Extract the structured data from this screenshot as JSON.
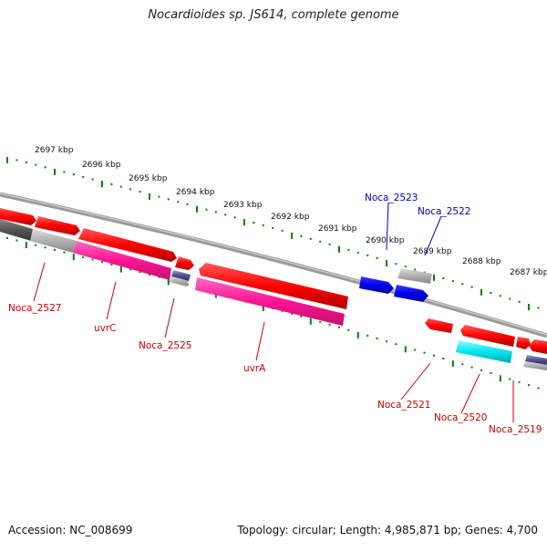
{
  "title": "Nocardioides sp. JS614, complete genome",
  "accession": "Accession: NC_008699",
  "topology": "Topology: circular; Length: 4,985,871 bp; Genes: 4,700",
  "colors": {
    "forward_gene": "#ff0000",
    "reverse_gene": "#ff1493",
    "rna_gene": "#0000ee",
    "pseudo_gene": "#aaaaaa",
    "highlight": "#00e5ee",
    "label_red": "#cc0000",
    "label_blue": "#0000bb",
    "tick": "#008000",
    "backbone": "#888888"
  },
  "ticks": [
    "2697 kbp",
    "2696 kbp",
    "2695 kbp",
    "2694 kbp",
    "2693 kbp",
    "2692 kbp",
    "2691 kbp",
    "2690 kbp",
    "2689 kbp",
    "2688 kbp",
    "2687 kbp"
  ],
  "gene_labels": [
    {
      "text": "Noca_2527",
      "color": "red"
    },
    {
      "text": "uvrC",
      "color": "red"
    },
    {
      "text": "Noca_2525",
      "color": "red"
    },
    {
      "text": "uvrA",
      "color": "red"
    },
    {
      "text": "Noca_2523",
      "color": "blue"
    },
    {
      "text": "Noca_2522",
      "color": "blue"
    },
    {
      "text": "Noca_2521",
      "color": "red"
    },
    {
      "text": "Noca_2520",
      "color": "red"
    },
    {
      "text": "Noca_2519",
      "color": "red"
    }
  ]
}
